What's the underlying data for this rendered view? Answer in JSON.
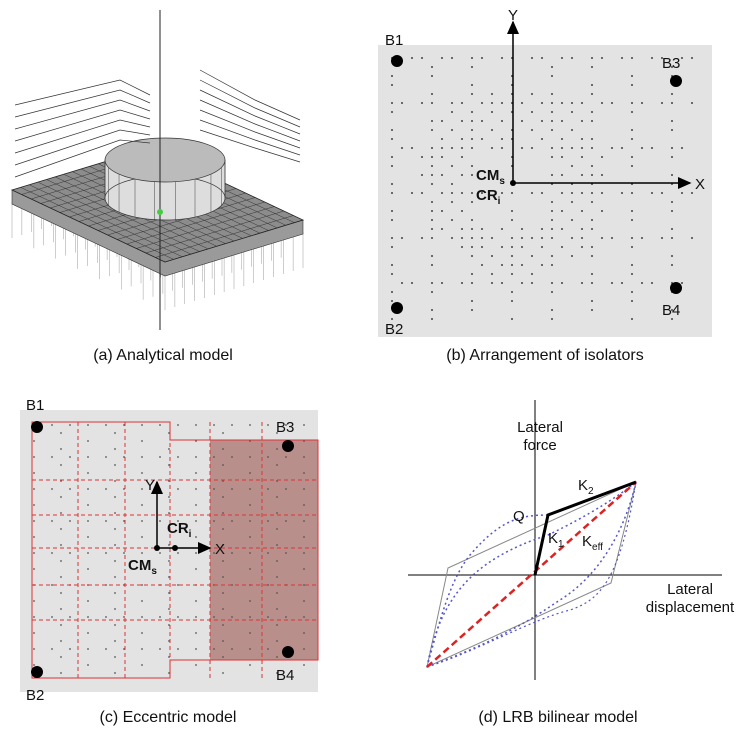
{
  "panel_a": {
    "caption": "(a)  Analytical model"
  },
  "panel_b": {
    "caption": "(b) Arrangement of isolators",
    "bearings": [
      "B1",
      "B2",
      "B3",
      "B4"
    ],
    "axis_x": "X",
    "axis_y": "Y",
    "cm": {
      "main": "CM",
      "sub": "s"
    },
    "cr": {
      "main": "CR",
      "sub": "i"
    }
  },
  "panel_c": {
    "caption": "(c) Eccentric model",
    "bearings": [
      "B1",
      "B2",
      "B3",
      "B4"
    ],
    "axis_x": "X",
    "axis_y": "Y",
    "cm": {
      "main": "CM",
      "sub": "s"
    },
    "cr": {
      "main": "CR",
      "sub": "i"
    }
  },
  "panel_d": {
    "caption": "(d) LRB bilinear model",
    "y_axis_label": [
      "Lateral",
      "force"
    ],
    "x_axis_label": [
      "Lateral",
      "displacement"
    ],
    "q": "Q",
    "k1": {
      "main": "K",
      "sub": "1"
    },
    "k2": {
      "main": "K",
      "sub": "2"
    },
    "keff": {
      "main": "K",
      "sub": "eff"
    }
  }
}
